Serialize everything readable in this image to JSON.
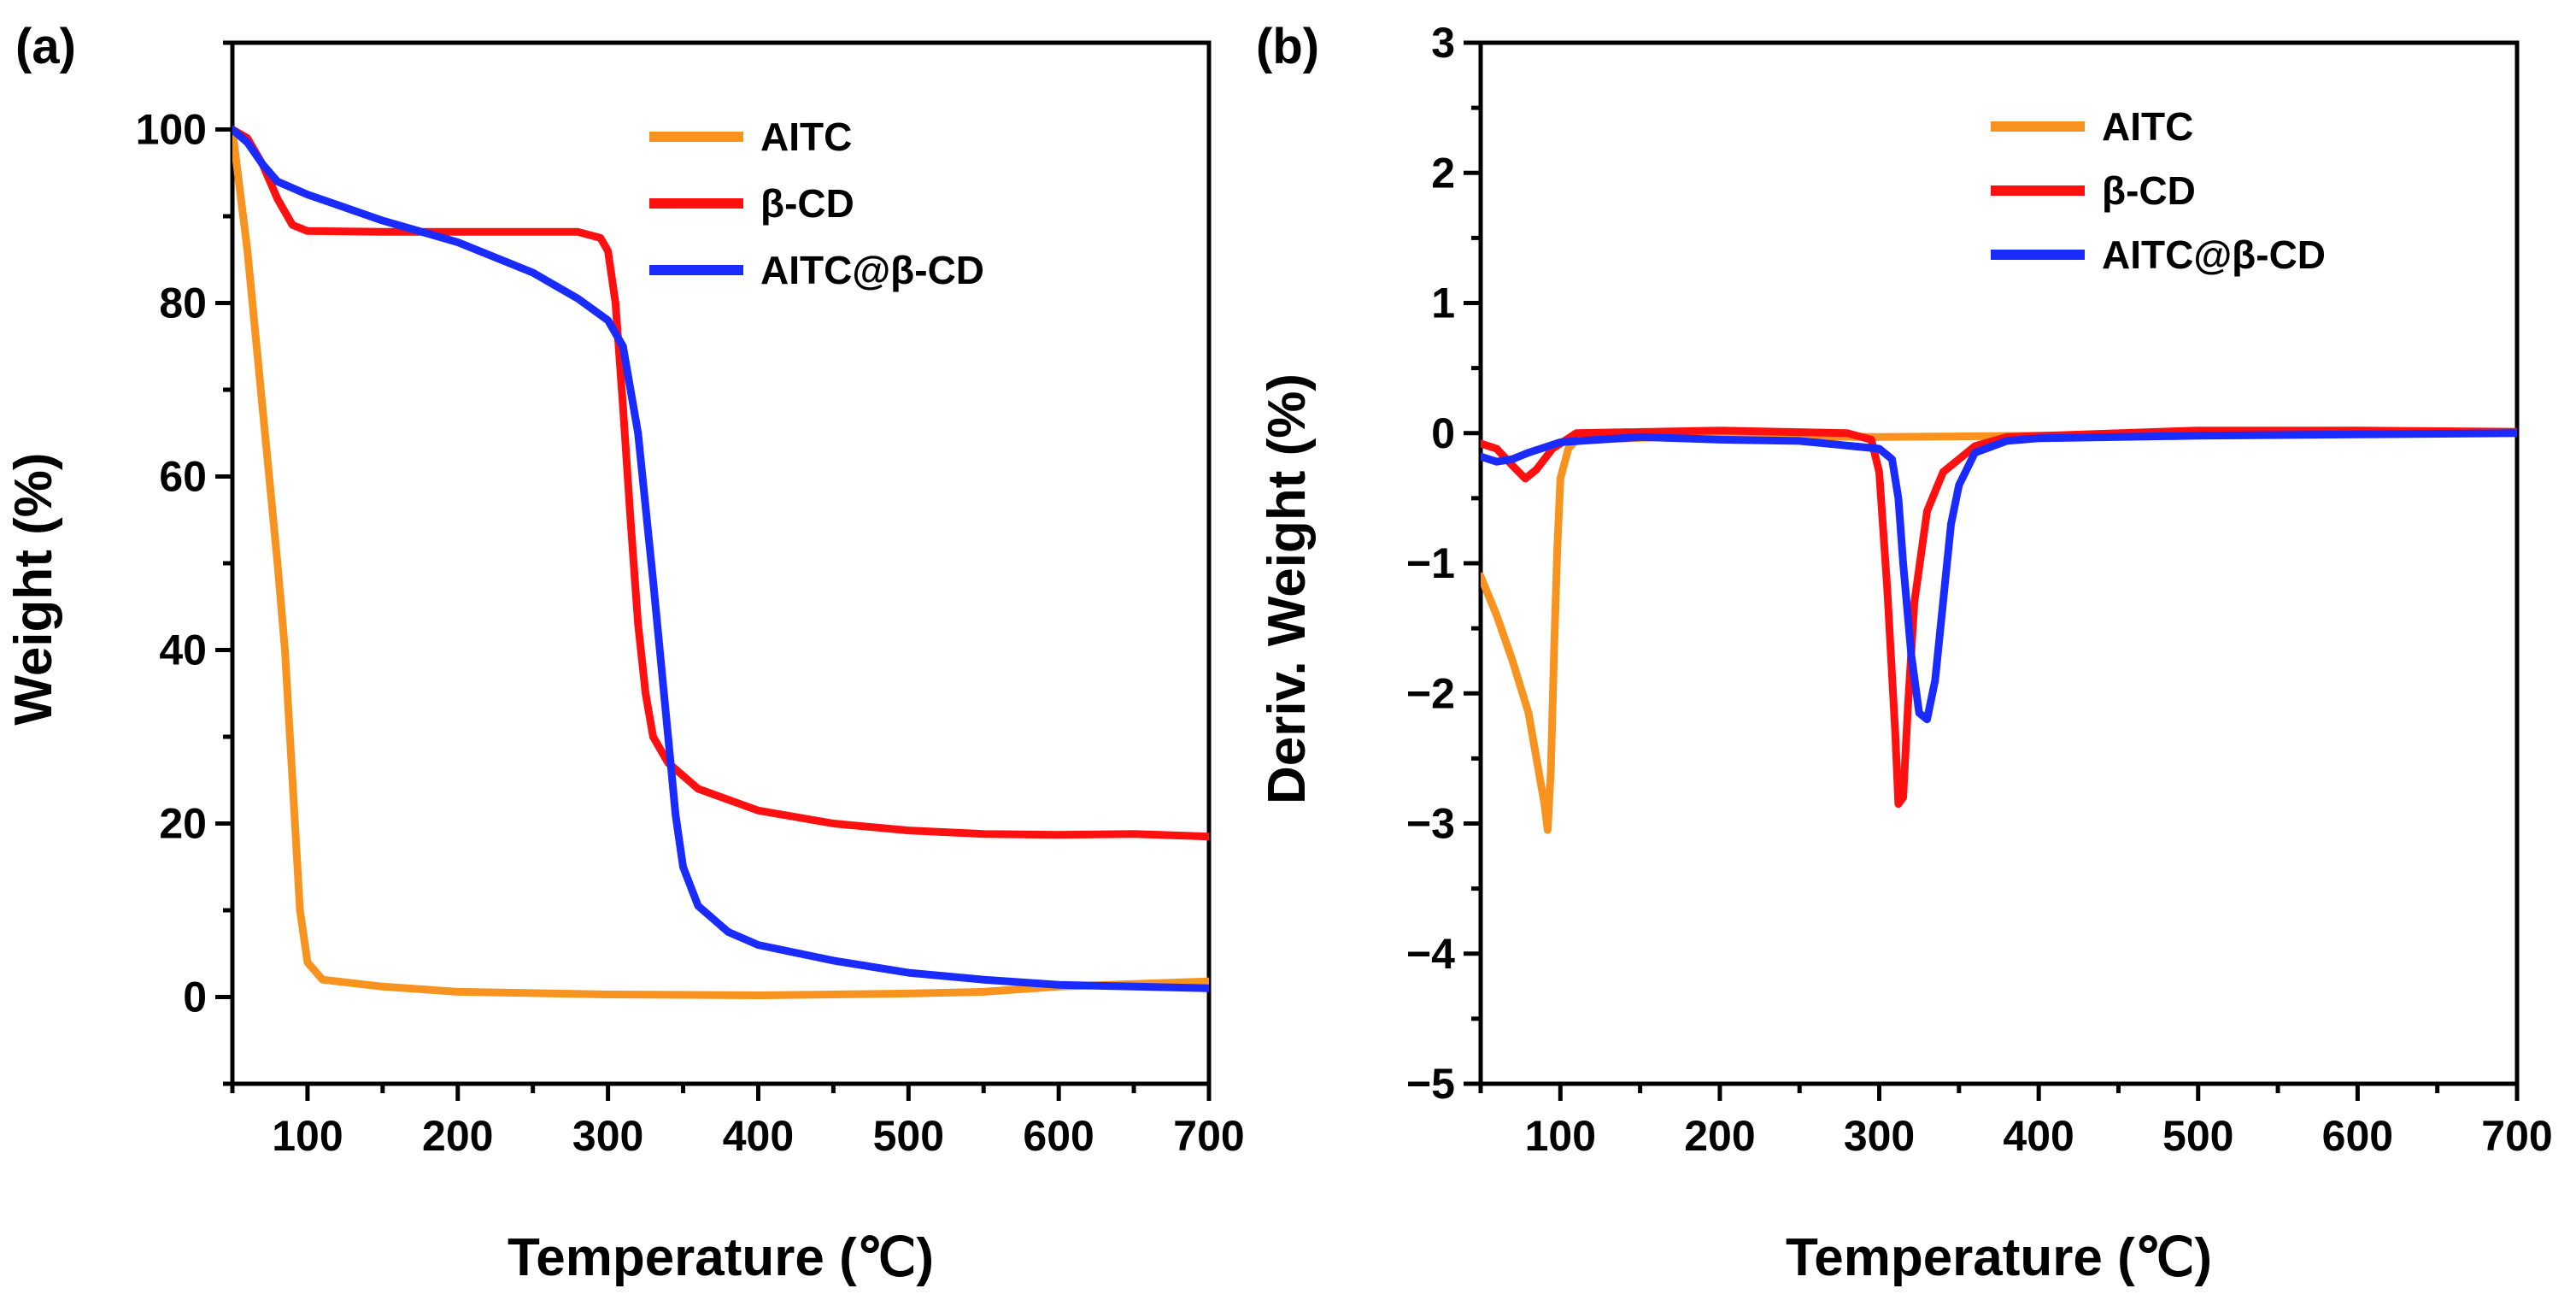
{
  "chart_data": [
    {
      "type": "line",
      "panel_label": "(a)",
      "xlabel": "Temperature (℃)",
      "ylabel": "Weight (%)",
      "xlim": [
        50,
        700
      ],
      "ylim": [
        -10,
        110
      ],
      "xticks": [
        100,
        200,
        300,
        400,
        500,
        600,
        700
      ],
      "yticks": [
        0,
        20,
        40,
        60,
        80,
        100
      ],
      "legend_position": "top-right",
      "series": [
        {
          "name": "AITC",
          "color": "#f7931e",
          "points": [
            [
              50,
              100
            ],
            [
              60,
              86
            ],
            [
              70,
              68
            ],
            [
              80,
              50
            ],
            [
              85,
              40
            ],
            [
              90,
              25
            ],
            [
              95,
              10
            ],
            [
              100,
              4
            ],
            [
              110,
              2
            ],
            [
              150,
              1.2
            ],
            [
              200,
              0.6
            ],
            [
              300,
              0.3
            ],
            [
              400,
              0.2
            ],
            [
              500,
              0.4
            ],
            [
              550,
              0.6
            ],
            [
              600,
              1.2
            ],
            [
              650,
              1.5
            ],
            [
              700,
              1.8
            ]
          ]
        },
        {
          "name": "β-CD",
          "color": "#ff1010",
          "points": [
            [
              50,
              100
            ],
            [
              60,
              99
            ],
            [
              70,
              96
            ],
            [
              80,
              92
            ],
            [
              90,
              89
            ],
            [
              100,
              88.3
            ],
            [
              150,
              88.2
            ],
            [
              200,
              88.2
            ],
            [
              250,
              88.2
            ],
            [
              280,
              88.2
            ],
            [
              295,
              87.5
            ],
            [
              300,
              86
            ],
            [
              305,
              80
            ],
            [
              310,
              68
            ],
            [
              315,
              55
            ],
            [
              320,
              43
            ],
            [
              325,
              35
            ],
            [
              330,
              30
            ],
            [
              340,
              27
            ],
            [
              360,
              24
            ],
            [
              400,
              21.5
            ],
            [
              450,
              20
            ],
            [
              500,
              19.2
            ],
            [
              550,
              18.8
            ],
            [
              600,
              18.7
            ],
            [
              650,
              18.8
            ],
            [
              700,
              18.5
            ]
          ]
        },
        {
          "name": "AITC@β-CD",
          "color": "#1a2bff",
          "points": [
            [
              50,
              100
            ],
            [
              60,
              98.5
            ],
            [
              70,
              96
            ],
            [
              80,
              94
            ],
            [
              100,
              92.5
            ],
            [
              150,
              89.5
            ],
            [
              200,
              87
            ],
            [
              250,
              83.5
            ],
            [
              280,
              80.5
            ],
            [
              300,
              78
            ],
            [
              310,
              75
            ],
            [
              320,
              65
            ],
            [
              330,
              48
            ],
            [
              340,
              30
            ],
            [
              345,
              21
            ],
            [
              350,
              15
            ],
            [
              360,
              10.5
            ],
            [
              380,
              7.5
            ],
            [
              400,
              6
            ],
            [
              450,
              4.2
            ],
            [
              500,
              2.8
            ],
            [
              550,
              2
            ],
            [
              600,
              1.4
            ],
            [
              650,
              1.2
            ],
            [
              700,
              1
            ]
          ]
        }
      ]
    },
    {
      "type": "line",
      "panel_label": "(b)",
      "xlabel": "Temperature (℃)",
      "ylabel": "Deriv. Weight (%)",
      "xlim": [
        50,
        700
      ],
      "ylim": [
        -5,
        3
      ],
      "xticks": [
        100,
        200,
        300,
        400,
        500,
        600,
        700
      ],
      "yticks": [
        -5,
        -4,
        -3,
        -2,
        -1,
        0,
        1,
        2,
        3
      ],
      "legend_position": "top-right",
      "series": [
        {
          "name": "AITC",
          "color": "#f7931e",
          "points": [
            [
              50,
              -1.1
            ],
            [
              60,
              -1.4
            ],
            [
              70,
              -1.75
            ],
            [
              80,
              -2.15
            ],
            [
              85,
              -2.5
            ],
            [
              90,
              -2.85
            ],
            [
              92,
              -3.05
            ],
            [
              94,
              -2.6
            ],
            [
              96,
              -1.7
            ],
            [
              98,
              -0.9
            ],
            [
              100,
              -0.35
            ],
            [
              105,
              -0.12
            ],
            [
              110,
              -0.05
            ],
            [
              200,
              -0.02
            ],
            [
              300,
              -0.03
            ],
            [
              400,
              -0.02
            ],
            [
              500,
              0
            ],
            [
              600,
              0.02
            ],
            [
              700,
              0
            ]
          ]
        },
        {
          "name": "β-CD",
          "color": "#ff1010",
          "points": [
            [
              50,
              -0.08
            ],
            [
              60,
              -0.12
            ],
            [
              70,
              -0.25
            ],
            [
              78,
              -0.35
            ],
            [
              85,
              -0.28
            ],
            [
              95,
              -0.12
            ],
            [
              110,
              0
            ],
            [
              200,
              0.02
            ],
            [
              280,
              0
            ],
            [
              295,
              -0.05
            ],
            [
              300,
              -0.3
            ],
            [
              305,
              -1.2
            ],
            [
              310,
              -2.3
            ],
            [
              312,
              -2.85
            ],
            [
              315,
              -2.8
            ],
            [
              318,
              -2.1
            ],
            [
              322,
              -1.3
            ],
            [
              330,
              -0.6
            ],
            [
              340,
              -0.3
            ],
            [
              360,
              -0.1
            ],
            [
              380,
              -0.03
            ],
            [
              500,
              0.02
            ],
            [
              600,
              0.02
            ],
            [
              700,
              0.01
            ]
          ]
        },
        {
          "name": "AITC@β-CD",
          "color": "#1a2bff",
          "points": [
            [
              50,
              -0.18
            ],
            [
              60,
              -0.22
            ],
            [
              70,
              -0.2
            ],
            [
              80,
              -0.15
            ],
            [
              100,
              -0.07
            ],
            [
              150,
              -0.03
            ],
            [
              200,
              -0.05
            ],
            [
              250,
              -0.06
            ],
            [
              300,
              -0.12
            ],
            [
              308,
              -0.2
            ],
            [
              312,
              -0.5
            ],
            [
              315,
              -1.0
            ],
            [
              320,
              -1.7
            ],
            [
              325,
              -2.15
            ],
            [
              330,
              -2.2
            ],
            [
              335,
              -1.9
            ],
            [
              340,
              -1.3
            ],
            [
              345,
              -0.7
            ],
            [
              350,
              -0.4
            ],
            [
              360,
              -0.15
            ],
            [
              380,
              -0.06
            ],
            [
              400,
              -0.04
            ],
            [
              500,
              -0.02
            ],
            [
              600,
              -0.01
            ],
            [
              700,
              0
            ]
          ]
        }
      ]
    }
  ]
}
